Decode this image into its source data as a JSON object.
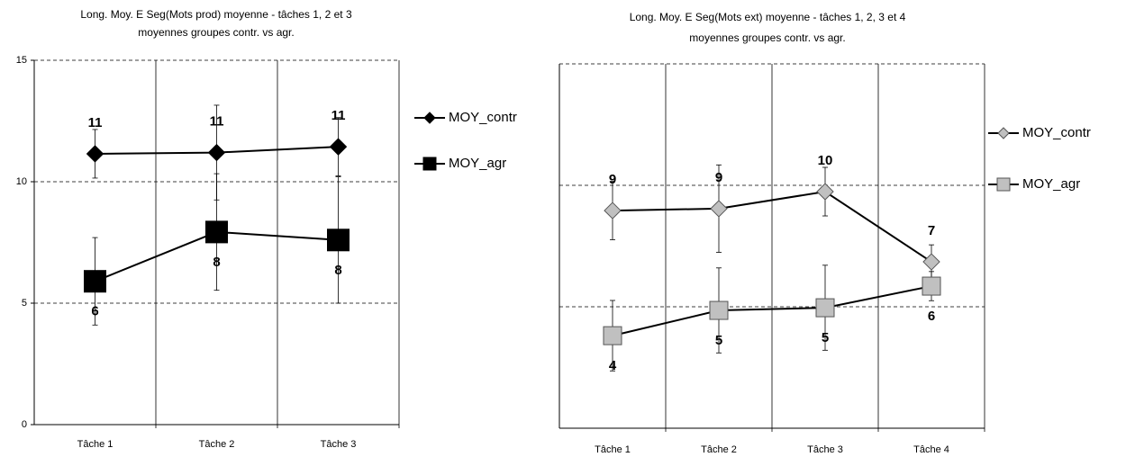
{
  "chart_data": [
    {
      "type": "line",
      "title": [
        "Long. Moy. E Seg(Mots prod) moyenne - tâches 1, 2 et 3",
        "moyennes groupes contr. vs agr."
      ],
      "categories": [
        "Tâche 1",
        "Tâche 2",
        "Tâche 3"
      ],
      "ylim": [
        0,
        15
      ],
      "yticks": [
        0,
        5,
        10,
        15
      ],
      "ytick_labels": true,
      "grid": true,
      "legend": "right",
      "series": [
        {
          "name": "MOY_contr",
          "color": "#000000",
          "marker": "diamond",
          "values": [
            11.15,
            11.2,
            11.44
          ],
          "errors": [
            1.0,
            1.95,
            1.2
          ],
          "value_labels": [
            "11",
            "11",
            "11"
          ],
          "label_side": "above"
        },
        {
          "name": "MOY_agr",
          "color": "#000000",
          "marker": "square",
          "values": [
            5.9,
            7.93,
            7.6
          ],
          "errors": [
            1.8,
            2.4,
            2.6
          ],
          "value_labels": [
            "6",
            "8",
            "8"
          ],
          "label_side": "below"
        }
      ]
    },
    {
      "type": "line",
      "title": [
        "Long. Moy. E Seg(Mots ext) moyenne - tâches 1, 2, 3 et 4",
        "moyennes groupes contr. vs agr."
      ],
      "categories": [
        "Tâche 1",
        "Tâche 2",
        "Tâche 3",
        "Tâche 4"
      ],
      "ylim": [
        0,
        15
      ],
      "yticks": [
        0,
        5,
        10,
        15
      ],
      "ytick_labels": false,
      "grid": true,
      "legend": "right",
      "series": [
        {
          "name": "MOY_contr",
          "color": "#c0c0c0",
          "marker": "diamond",
          "values": [
            8.96,
            9.04,
            9.74,
            6.85
          ],
          "errors": [
            1.2,
            1.8,
            1.0,
            0.7
          ],
          "value_labels": [
            "9",
            "9",
            "10",
            "7"
          ],
          "label_side": "above"
        },
        {
          "name": "MOY_agr",
          "color": "#c0c0c0",
          "marker": "square",
          "values": [
            3.81,
            4.85,
            4.96,
            5.85
          ],
          "errors": [
            1.45,
            1.75,
            1.75,
            0.6
          ],
          "value_labels": [
            "4",
            "5",
            "5",
            "6"
          ],
          "label_side": "below"
        }
      ]
    }
  ]
}
